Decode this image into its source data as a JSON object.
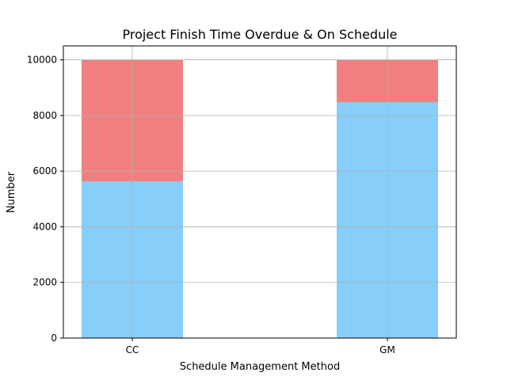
{
  "chart_data": {
    "type": "bar",
    "stacked": true,
    "title": "Project Finish Time Overdue & On Schedule",
    "xlabel": "Schedule Management Method",
    "ylabel": "Number",
    "categories": [
      "CC",
      "GM"
    ],
    "series": [
      {
        "values": [
          5630,
          8480
        ],
        "color": "#87CEFA"
      },
      {
        "values": [
          4370,
          1520
        ],
        "color": "#F08080"
      }
    ],
    "ylim": [
      0,
      10500
    ],
    "yticks": [
      0,
      2000,
      4000,
      6000,
      8000,
      10000
    ],
    "grid": true
  }
}
